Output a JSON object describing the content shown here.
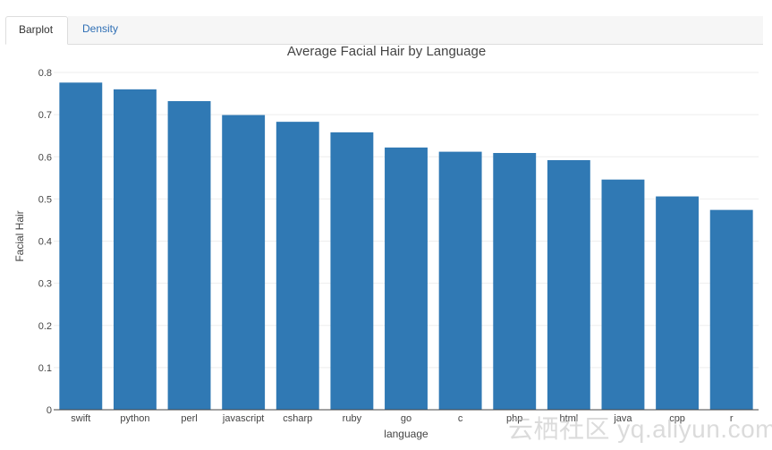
{
  "tabs": [
    {
      "label": "Barplot",
      "active": true
    },
    {
      "label": "Density",
      "active": false
    }
  ],
  "watermark": "云栖社区 yq.aliyun.com",
  "colors": {
    "bar": "#3079b4",
    "grid": "#eeeeee",
    "axis": "#444444",
    "tab_link": "#2f6fb5"
  },
  "chart_data": {
    "type": "bar",
    "title": "Average Facial Hair by Language",
    "xlabel": "language",
    "ylabel": "Facial Hair",
    "categories": [
      "swift",
      "python",
      "perl",
      "javascript",
      "csharp",
      "ruby",
      "go",
      "c",
      "php",
      "html",
      "java",
      "cpp",
      "r"
    ],
    "values": [
      0.776,
      0.76,
      0.732,
      0.699,
      0.683,
      0.658,
      0.622,
      0.612,
      0.609,
      0.592,
      0.546,
      0.506,
      0.474
    ],
    "ylim": [
      0,
      0.8
    ],
    "yticks": [
      0,
      0.1,
      0.2,
      0.3,
      0.4,
      0.5,
      0.6,
      0.7,
      0.8
    ],
    "ytick_labels": [
      "0",
      "0.1",
      "0.2",
      "0.3",
      "0.4",
      "0.5",
      "0.6",
      "0.7",
      "0.8"
    ],
    "grid": true,
    "legend": "none"
  }
}
